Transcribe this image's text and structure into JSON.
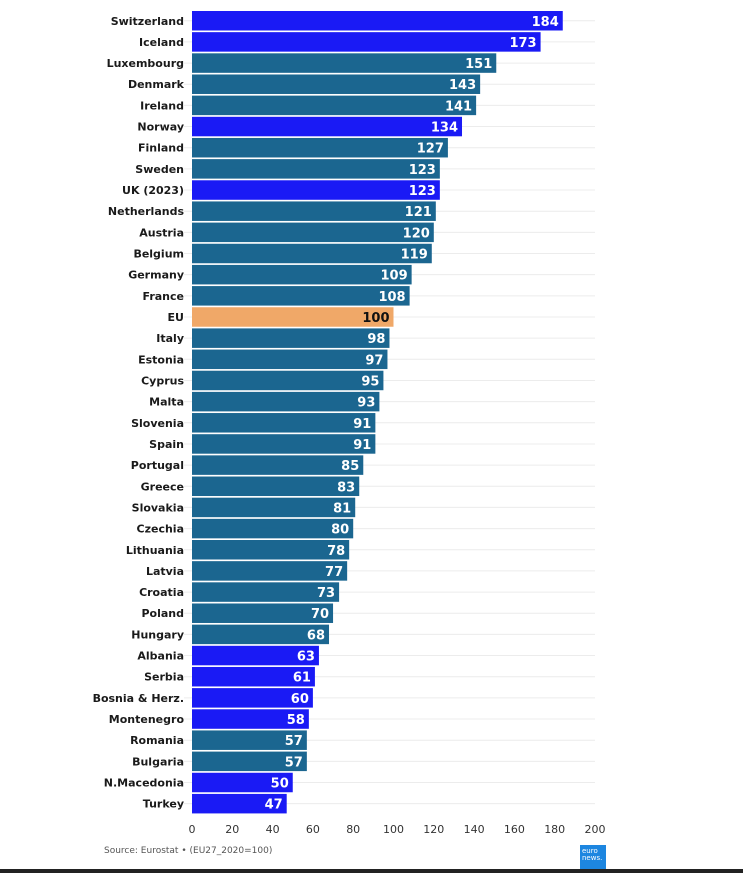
{
  "chart_data": {
    "type": "bar",
    "orientation": "horizontal",
    "title": "",
    "xlabel": "",
    "ylabel": "",
    "xlim": [
      0,
      200
    ],
    "xticks": [
      0,
      20,
      40,
      60,
      80,
      100,
      120,
      140,
      160,
      180,
      200
    ],
    "grid": true,
    "legend": "none",
    "colors": {
      "eu_member": "#1b6690",
      "non_eu": "#1a1af5",
      "eu_average": "#f0a868"
    },
    "categories": [
      "Switzerland",
      "Iceland",
      "Luxembourg",
      "Denmark",
      "Ireland",
      "Norway",
      "Finland",
      "Sweden",
      "UK (2023)",
      "Netherlands",
      "Austria",
      "Belgium",
      "Germany",
      "France",
      "EU",
      "Italy",
      "Estonia",
      "Cyprus",
      "Malta",
      "Slovenia",
      "Spain",
      "Portugal",
      "Greece",
      "Slovakia",
      "Czechia",
      "Lithuania",
      "Latvia",
      "Croatia",
      "Poland",
      "Hungary",
      "Albania",
      "Serbia",
      "Bosnia & Herz.",
      "Montenegro",
      "Romania",
      "Bulgaria",
      "N.Macedonia",
      "Turkey"
    ],
    "values": [
      184,
      173,
      151,
      143,
      141,
      134,
      127,
      123,
      123,
      121,
      120,
      119,
      109,
      108,
      100,
      98,
      97,
      95,
      93,
      91,
      91,
      85,
      83,
      81,
      80,
      78,
      77,
      73,
      70,
      68,
      63,
      61,
      60,
      58,
      57,
      57,
      50,
      47
    ],
    "groups": [
      "non_eu",
      "non_eu",
      "eu_member",
      "eu_member",
      "eu_member",
      "non_eu",
      "eu_member",
      "eu_member",
      "non_eu",
      "eu_member",
      "eu_member",
      "eu_member",
      "eu_member",
      "eu_member",
      "eu_average",
      "eu_member",
      "eu_member",
      "eu_member",
      "eu_member",
      "eu_member",
      "eu_member",
      "eu_member",
      "eu_member",
      "eu_member",
      "eu_member",
      "eu_member",
      "eu_member",
      "eu_member",
      "eu_member",
      "eu_member",
      "non_eu",
      "non_eu",
      "non_eu",
      "non_eu",
      "eu_member",
      "eu_member",
      "non_eu",
      "non_eu"
    ]
  },
  "footer": {
    "source": "Source: Eurostat • (EU27_2020=100)",
    "logo_line1": "euro",
    "logo_line2": "news."
  }
}
